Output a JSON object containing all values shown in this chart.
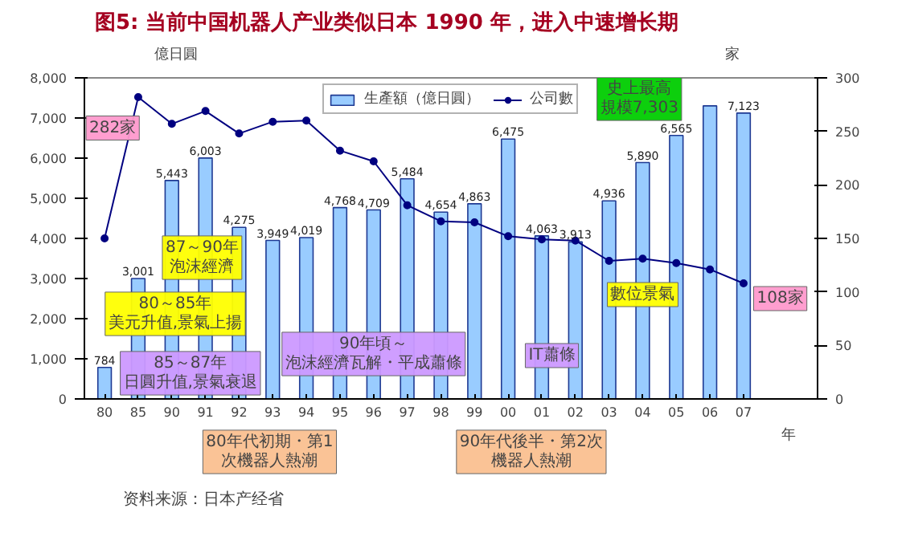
{
  "chart_data": {
    "type": "bar",
    "title": "图5:   当前中国机器人产业类似日本 1990 年，进入中速增长期",
    "categories": [
      "80",
      "85",
      "90",
      "91",
      "92",
      "93",
      "94",
      "95",
      "96",
      "97",
      "98",
      "99",
      "00",
      "01",
      "02",
      "03",
      "04",
      "05",
      "06",
      "07"
    ],
    "series": [
      {
        "name": "生產額（億日圓）",
        "color": "#99ccff",
        "values": [
          784,
          3001,
          5443,
          6003,
          4275,
          3949,
          4019,
          4768,
          4709,
          5484,
          4654,
          4863,
          6475,
          4063,
          3913,
          4936,
          5890,
          6565,
          7303,
          7123
        ],
        "value_labels": [
          "784",
          "3,001",
          "5,443",
          "6,003",
          "4,275",
          "3,949",
          "4,019",
          "4,768",
          "4,709",
          "5,484",
          "4,654",
          "4,863",
          "6,475",
          "4,063",
          "3,913",
          "4,936",
          "5,890",
          "6,565",
          null,
          "7,123"
        ]
      },
      {
        "type": "line",
        "name": "公司數",
        "color": "#000080",
        "axis": "y2",
        "values": [
          150,
          282,
          257,
          269,
          248,
          259,
          260,
          232,
          222,
          181,
          166,
          165,
          152,
          149,
          148,
          129,
          131,
          127,
          121,
          108
        ]
      }
    ],
    "xlabel": "年",
    "ylabel": "億日圓",
    "y2label": "家",
    "ylim": [
      0,
      8000
    ],
    "yticks": [
      0,
      {
        "value": 1000,
        "label": "1,000"
      },
      {
        "value": 2000,
        "label": "2,000"
      },
      {
        "value": 3000,
        "label": "3,000"
      },
      {
        "value": 4000,
        "label": "4,000"
      },
      {
        "value": 5000,
        "label": "5,000"
      },
      {
        "value": 6000,
        "label": "6,000"
      },
      {
        "value": 7000,
        "label": "7,000"
      },
      {
        "value": 8000,
        "label": "8,000"
      }
    ],
    "y2lim": [
      0,
      300
    ],
    "y2ticks": [
      0,
      50,
      100,
      150,
      200,
      250,
      300
    ],
    "legend": "top",
    "marker": "circle",
    "line_style": "solid",
    "grid": false,
    "annotations": [
      "282家",
      "史上最高規模7,303",
      "108家",
      "87～90年泡沫經濟",
      "80～85年美元升值,景氣上揚",
      "85～87年日圓升值,景氣衰退",
      "90年頃～泡沫經濟瓦解・平成蕭條",
      "IT蕭條",
      "數位景氣",
      "80年代初期・第1次機器人熱潮",
      "90年代後半・第2次機器人熱潮",
      "资料来源：日本产经省"
    ]
  }
}
